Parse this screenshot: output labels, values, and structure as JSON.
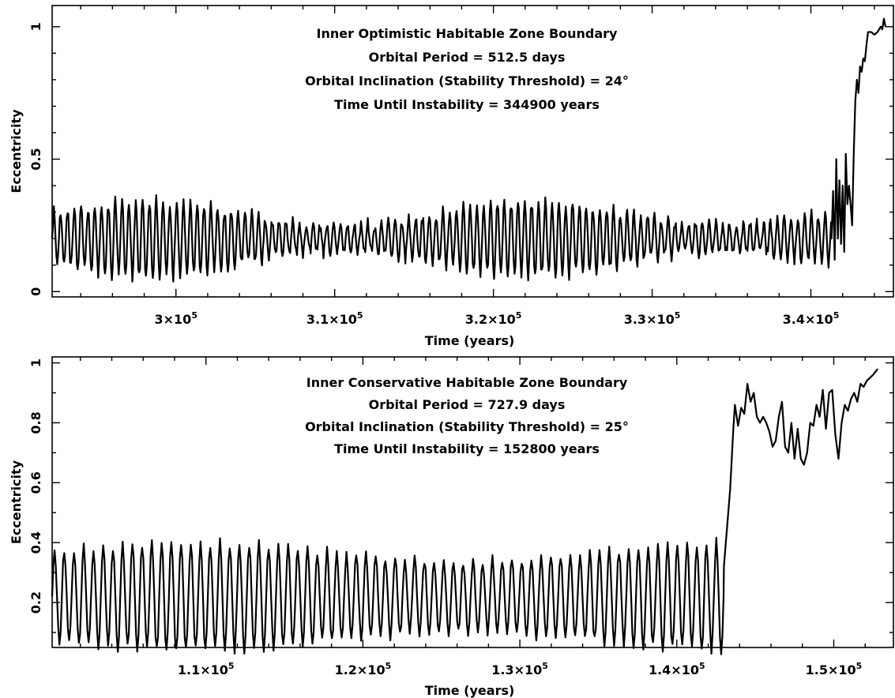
{
  "chart_data": [
    {
      "type": "line",
      "xlabel": "Time (years)",
      "ylabel": "Eccentricity",
      "xlim": [
        292200,
        345200
      ],
      "ylim": [
        -0.02,
        1.08
      ],
      "xticks": [
        {
          "value": 300000,
          "label": "3×10",
          "sup": "5"
        },
        {
          "value": 310000,
          "label": "3.1×10",
          "sup": "5"
        },
        {
          "value": 320000,
          "label": "3.2×10",
          "sup": "5"
        },
        {
          "value": 330000,
          "label": "3.3×10",
          "sup": "5"
        },
        {
          "value": 340000,
          "label": "3.4×10",
          "sup": "5"
        }
      ],
      "yticks": [
        {
          "value": 0,
          "label": "0"
        },
        {
          "value": 0.5,
          "label": "0.5"
        },
        {
          "value": 1,
          "label": "1"
        }
      ],
      "annotations": [
        "Inner Optimistic Habitable Zone Boundary",
        "Orbital Period = 512.5 days",
        "Orbital Inclination (Stability Threshold) = 24°",
        "Time Until Instability = 344900 years"
      ],
      "oscillation": {
        "x_end": 341300,
        "cycle_years": 430,
        "mean": 0.2,
        "amplitude_min": 0.05,
        "amplitude_max": 0.14
      },
      "points": [
        [
          341300,
          0.2
        ],
        [
          341400,
          0.38
        ],
        [
          341500,
          0.12
        ],
        [
          341600,
          0.5
        ],
        [
          341700,
          0.2
        ],
        [
          341800,
          0.42
        ],
        [
          341900,
          0.18
        ],
        [
          342000,
          0.4
        ],
        [
          342100,
          0.15
        ],
        [
          342200,
          0.52
        ],
        [
          342300,
          0.33
        ],
        [
          342400,
          0.4
        ],
        [
          342500,
          0.33
        ],
        [
          342600,
          0.25
        ],
        [
          342700,
          0.52
        ],
        [
          342800,
          0.72
        ],
        [
          342900,
          0.8
        ],
        [
          343000,
          0.75
        ],
        [
          343100,
          0.85
        ],
        [
          343200,
          0.83
        ],
        [
          343300,
          0.88
        ],
        [
          343400,
          0.87
        ],
        [
          343500,
          0.93
        ],
        [
          343600,
          0.98
        ],
        [
          343800,
          0.98
        ],
        [
          344000,
          0.97
        ],
        [
          344200,
          0.98
        ],
        [
          344400,
          1.0
        ],
        [
          344500,
          0.99
        ],
        [
          344600,
          1.03
        ],
        [
          344700,
          1.0
        ]
      ]
    },
    {
      "type": "line",
      "xlabel": "Time (years)",
      "ylabel": "Eccentricity",
      "xlim": [
        100200,
        153800
      ],
      "ylim": [
        0.05,
        1.02
      ],
      "xticks": [
        {
          "value": 110000,
          "label": "1.1×10",
          "sup": "5"
        },
        {
          "value": 120000,
          "label": "1.2×10",
          "sup": "5"
        },
        {
          "value": 130000,
          "label": "1.3×10",
          "sup": "5"
        },
        {
          "value": 140000,
          "label": "1.4×10",
          "sup": "5"
        },
        {
          "value": 150000,
          "label": "1.5×10",
          "sup": "5"
        }
      ],
      "yticks": [
        {
          "value": 0.2,
          "label": "0.2"
        },
        {
          "value": 0.4,
          "label": "0.4"
        },
        {
          "value": 0.6,
          "label": "0.6"
        },
        {
          "value": 0.8,
          "label": "0.8"
        },
        {
          "value": 1,
          "label": "1"
        }
      ],
      "annotations": [
        "Inner Conservative Habitable Zone Boundary",
        "Orbital Period = 727.9 days",
        "Orbital Inclination (Stability Threshold) = 25°",
        "Time Until Instability = 152800 years"
      ],
      "oscillation": {
        "x_end": 143000,
        "cycle_years": 620,
        "mean": 0.22,
        "amplitude_min": 0.12,
        "amplitude_max": 0.18
      },
      "points": [
        [
          143000,
          0.32
        ],
        [
          143200,
          0.45
        ],
        [
          143400,
          0.58
        ],
        [
          143600,
          0.78
        ],
        [
          143700,
          0.86
        ],
        [
          143900,
          0.79
        ],
        [
          144100,
          0.85
        ],
        [
          144300,
          0.83
        ],
        [
          144500,
          0.93
        ],
        [
          144700,
          0.87
        ],
        [
          144900,
          0.9
        ],
        [
          145100,
          0.82
        ],
        [
          145300,
          0.8
        ],
        [
          145500,
          0.82
        ],
        [
          145700,
          0.8
        ],
        [
          145900,
          0.77
        ],
        [
          146100,
          0.72
        ],
        [
          146300,
          0.74
        ],
        [
          146500,
          0.82
        ],
        [
          146700,
          0.87
        ],
        [
          146900,
          0.72
        ],
        [
          147100,
          0.7
        ],
        [
          147300,
          0.8
        ],
        [
          147500,
          0.68
        ],
        [
          147700,
          0.78
        ],
        [
          147900,
          0.68
        ],
        [
          148100,
          0.66
        ],
        [
          148300,
          0.7
        ],
        [
          148500,
          0.8
        ],
        [
          148700,
          0.79
        ],
        [
          148900,
          0.86
        ],
        [
          149100,
          0.82
        ],
        [
          149300,
          0.91
        ],
        [
          149500,
          0.78
        ],
        [
          149700,
          0.9
        ],
        [
          149900,
          0.91
        ],
        [
          150100,
          0.76
        ],
        [
          150300,
          0.68
        ],
        [
          150500,
          0.8
        ],
        [
          150700,
          0.86
        ],
        [
          150900,
          0.84
        ],
        [
          151100,
          0.88
        ],
        [
          151300,
          0.9
        ],
        [
          151500,
          0.87
        ],
        [
          151700,
          0.93
        ],
        [
          151900,
          0.92
        ],
        [
          152100,
          0.94
        ],
        [
          152300,
          0.95
        ],
        [
          152500,
          0.96
        ],
        [
          152800,
          0.98
        ]
      ]
    }
  ]
}
